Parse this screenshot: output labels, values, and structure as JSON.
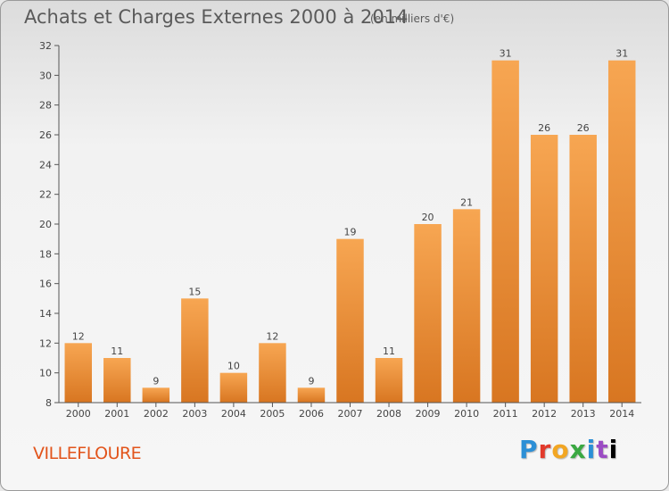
{
  "header": {
    "title": "Achats et Charges Externes 2000 à 2014",
    "unit": "(en milliers d'€)"
  },
  "footer": {
    "commune": "VILLEFLOURE",
    "brand": "Proxiti"
  },
  "colors": {
    "bar_top": "#f7a652",
    "bar_bottom": "#d87621",
    "commune_text": "#e2541b",
    "axis": "#555555"
  },
  "chart_data": {
    "type": "bar",
    "title": "Achats et Charges Externes 2000 à 2014",
    "subtitle": "(en milliers d'€)",
    "xlabel": "",
    "ylabel": "",
    "categories": [
      "2000",
      "2001",
      "2002",
      "2003",
      "2004",
      "2005",
      "2006",
      "2007",
      "2008",
      "2009",
      "2010",
      "2011",
      "2012",
      "2013",
      "2014"
    ],
    "values": [
      12,
      11,
      9,
      15,
      10,
      12,
      9,
      19,
      11,
      20,
      21,
      31,
      26,
      26,
      31
    ],
    "ylim": [
      8,
      32
    ],
    "yticks": [
      8,
      10,
      12,
      14,
      16,
      18,
      20,
      22,
      24,
      26,
      28,
      30,
      32
    ],
    "grid": false,
    "legend": "none"
  }
}
